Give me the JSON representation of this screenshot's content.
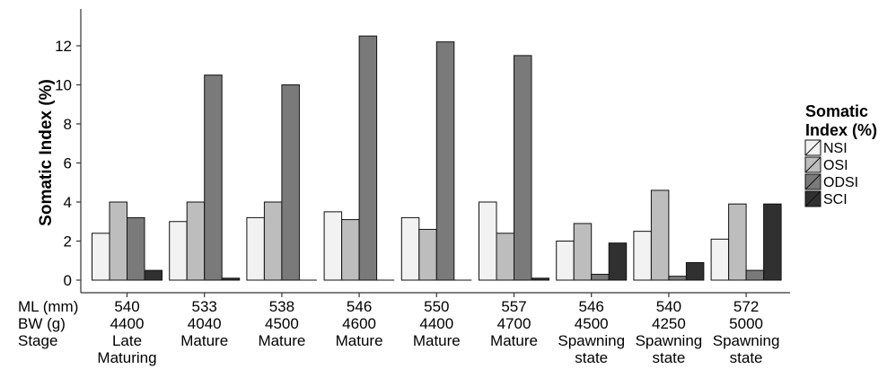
{
  "chart_data": {
    "type": "bar",
    "title": "",
    "xlabel": "",
    "ylabel": "Somatic Index (%)",
    "ylim": [
      0,
      13.5
    ],
    "yticks": [
      0,
      2,
      4,
      6,
      8,
      10,
      12
    ],
    "grid": false,
    "legend": {
      "title": "Somatic Index (%)",
      "position": "right"
    },
    "row_labels": [
      "ML (mm)",
      "BW (g)",
      "Stage"
    ],
    "categories": [
      {
        "ml": "540",
        "bw": "4400",
        "stage": [
          "Late",
          "Maturing"
        ]
      },
      {
        "ml": "533",
        "bw": "4040",
        "stage": [
          "Mature"
        ]
      },
      {
        "ml": "538",
        "bw": "4500",
        "stage": [
          "Mature"
        ]
      },
      {
        "ml": "546",
        "bw": "4600",
        "stage": [
          "Mature"
        ]
      },
      {
        "ml": "550",
        "bw": "4400",
        "stage": [
          "Mature"
        ]
      },
      {
        "ml": "557",
        "bw": "4700",
        "stage": [
          "Mature"
        ]
      },
      {
        "ml": "546",
        "bw": "4500",
        "stage": [
          "Spawning",
          "state"
        ]
      },
      {
        "ml": "540",
        "bw": "4250",
        "stage": [
          "Spawning",
          "state"
        ]
      },
      {
        "ml": "572",
        "bw": "5000",
        "stage": [
          "Spawning",
          "state"
        ]
      }
    ],
    "series": [
      {
        "name": "NSI",
        "color": "#f2f2f2",
        "values": [
          2.4,
          3.0,
          3.2,
          3.5,
          3.2,
          4.0,
          2.0,
          2.5,
          2.1
        ]
      },
      {
        "name": "OSI",
        "color": "#bdbdbd",
        "values": [
          4.0,
          4.0,
          4.0,
          3.1,
          2.6,
          2.4,
          2.9,
          4.6,
          3.9
        ]
      },
      {
        "name": "ODSI",
        "color": "#7a7a7a",
        "values": [
          3.2,
          10.5,
          10.0,
          12.5,
          12.2,
          11.5,
          0.3,
          0.2,
          0.5
        ]
      },
      {
        "name": "SCI",
        "color": "#303030",
        "values": [
          0.5,
          0.1,
          0.0,
          0.0,
          0.0,
          0.1,
          1.9,
          0.9,
          3.9
        ]
      }
    ]
  }
}
